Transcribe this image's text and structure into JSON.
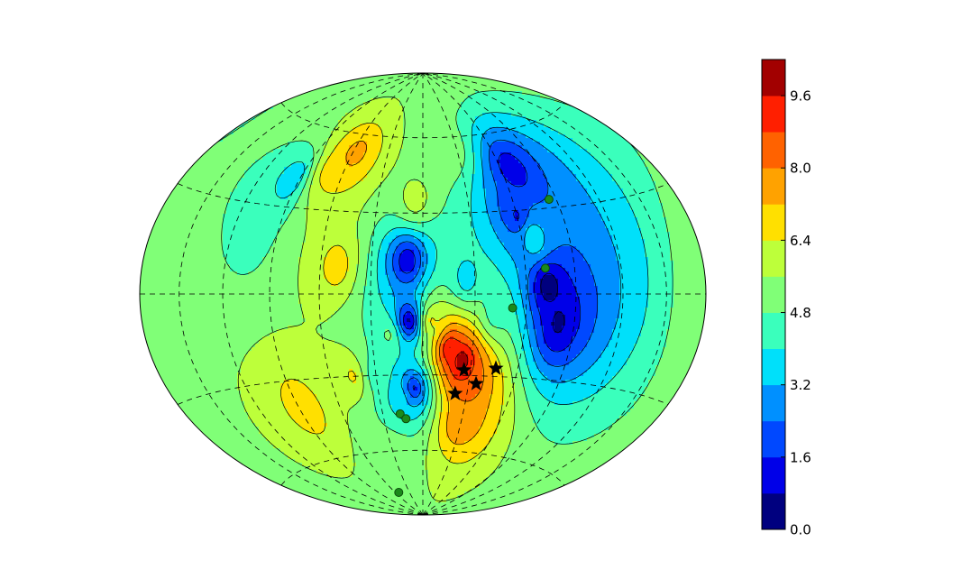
{
  "chart_data": {
    "type": "heatmap",
    "projection": "hammer-aitoff (full sphere, elliptical)",
    "title": "",
    "colormap": "jet",
    "grid": true,
    "grid_style": "dashed",
    "colorbar": {
      "placement": "right",
      "min": 0.0,
      "max": 10.4,
      "level_step": 0.8,
      "levels": [
        0.0,
        0.8,
        1.6,
        2.4,
        3.2,
        4.0,
        4.8,
        5.6,
        6.4,
        7.2,
        8.0,
        8.8,
        9.6,
        10.4
      ],
      "tick_labels": [
        "0.0",
        "1.6",
        "3.2",
        "4.8",
        "6.4",
        "8.0",
        "9.6"
      ],
      "colors": [
        "#00007f",
        "#0000e8",
        "#0048ff",
        "#0090ff",
        "#00e0fa",
        "#3affbc",
        "#80ff77",
        "#bdff3a",
        "#ffe000",
        "#ffa200",
        "#ff6200",
        "#ff1f00",
        "#a20000"
      ]
    },
    "field_features": [
      {
        "lon": 25,
        "lat": 5,
        "value": 3.6
      },
      {
        "lon": 42,
        "lat": -7,
        "value": 4.4
      },
      {
        "lon": 67,
        "lat": 20,
        "value": 4.0
      },
      {
        "lon": 60,
        "lat": 28,
        "value": 1.4
      },
      {
        "lon": 68,
        "lat": 45,
        "value": 1.0
      },
      {
        "lon": 80,
        "lat": -10,
        "value": 0.6
      },
      {
        "lon": 73,
        "lat": 3,
        "value": 0.2
      },
      {
        "lon": 24,
        "lat": -25,
        "value": 10.6
      },
      {
        "lon": 16,
        "lat": -20,
        "value": 9.8
      },
      {
        "lon": 30,
        "lat": -32,
        "value": 8.8
      },
      {
        "lon": 30,
        "lat": -48,
        "value": 8.0
      },
      {
        "lon": 5,
        "lat": -10,
        "value": 6.6
      },
      {
        "lon": -5,
        "lat": 35,
        "value": 6.0
      },
      {
        "lon": -9,
        "lat": 12,
        "value": 0.8
      },
      {
        "lon": -8,
        "lat": -10,
        "value": 0.4
      },
      {
        "lon": -6,
        "lat": -35,
        "value": 1.2
      },
      {
        "lon": -20,
        "lat": -15,
        "value": 5.0
      },
      {
        "lon": -30,
        "lat": -30,
        "value": 4.4
      },
      {
        "lon": -14,
        "lat": -38,
        "value": 3.4
      },
      {
        "lon": -58,
        "lat": 52,
        "value": 7.6
      },
      {
        "lon": -70,
        "lat": 45,
        "value": 6.8
      },
      {
        "lon": -50,
        "lat": 10,
        "value": 6.8
      },
      {
        "lon": -45,
        "lat": -30,
        "value": 6.6
      },
      {
        "lon": -95,
        "lat": 40,
        "value": 3.4
      },
      {
        "lon": -105,
        "lat": 20,
        "value": 4.6
      },
      {
        "lon": -85,
        "lat": -40,
        "value": 6.8
      },
      {
        "lon": -30,
        "lat": -62,
        "value": 5.4
      },
      {
        "lon": 20,
        "lat": 55,
        "value": 5.6
      },
      {
        "lon": 0,
        "lat": 82,
        "value": 5.6
      },
      {
        "lon": -175,
        "lat": 0,
        "value": 5.6
      }
    ],
    "stars": [
      {
        "lon": 26,
        "lat": -28
      },
      {
        "lon": 35,
        "lat": -33
      },
      {
        "lon": 46,
        "lat": -27
      },
      {
        "lon": 22,
        "lat": -37
      }
    ],
    "green_markers": [
      {
        "lon": 52,
        "lat": -5
      },
      {
        "lon": 72,
        "lat": 9
      },
      {
        "lon": 85,
        "lat": 33
      },
      {
        "lon": -17,
        "lat": -45
      },
      {
        "lon": -13,
        "lat": -47
      },
      {
        "lon": -53,
        "lat": -78
      }
    ]
  }
}
